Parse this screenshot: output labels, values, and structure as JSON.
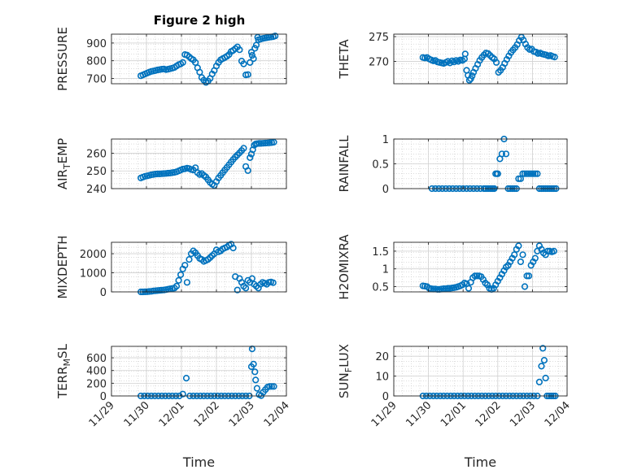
{
  "figure": {
    "title": "Figure 2 high",
    "marker_color": "#0072BD",
    "axis_color": "#262626",
    "grid_color": "#c8c8c8"
  },
  "chart_data": [
    {
      "type": "scatter",
      "ylabel": "PRESSURE",
      "ylim": [
        670,
        950
      ],
      "yticks": [
        700,
        800,
        900
      ],
      "xlabel": "",
      "title": "Figure 2 high",
      "x_range": [
        "11/29",
        "12/04"
      ],
      "x": [
        29.84,
        29.9,
        29.96,
        30.02,
        30.08,
        30.14,
        30.2,
        30.26,
        30.32,
        30.38,
        30.44,
        30.5,
        30.56,
        30.62,
        30.68,
        30.74,
        30.8,
        30.86,
        30.92,
        30.98,
        31.04,
        31.1,
        31.16,
        31.22,
        31.28,
        31.34,
        31.4,
        31.46,
        31.52,
        31.58,
        31.64,
        31.7,
        31.76,
        31.82,
        31.88,
        31.94,
        32.0,
        32.06,
        32.12,
        32.18,
        32.24,
        32.3,
        32.36,
        32.42,
        32.48,
        32.54,
        32.6,
        32.66,
        32.72,
        32.78,
        32.84,
        32.9,
        32.96,
        33.0,
        33.02,
        33.06,
        33.1,
        33.14,
        33.18,
        33.2,
        33.26,
        33.32,
        33.38,
        33.44,
        33.5,
        33.56,
        33.62,
        33.68
      ],
      "y": [
        715,
        720,
        725,
        730,
        735,
        740,
        742,
        745,
        748,
        750,
        752,
        753,
        750,
        752,
        755,
        758,
        762,
        770,
        778,
        782,
        790,
        835,
        832,
        822,
        812,
        805,
        790,
        760,
        735,
        705,
        690,
        678,
        685,
        700,
        725,
        745,
        770,
        790,
        805,
        812,
        818,
        825,
        835,
        852,
        858,
        868,
        878,
        862,
        798,
        782,
        720,
        722,
        790,
        848,
        830,
        812,
        870,
        888,
        932,
        918,
        922,
        925,
        928,
        930,
        932,
        934,
        936,
        940
      ],
      "series": [
        {
          "name": "",
          "values": []
        }
      ]
    },
    {
      "type": "scatter",
      "ylabel": "THETA",
      "ylim": [
        265.5,
        275.5
      ],
      "yticks": [
        270,
        275
      ],
      "xlabel": "",
      "title": "",
      "x_range": [
        "11/29",
        "12/04"
      ],
      "x": [
        29.84,
        29.9,
        29.96,
        30.02,
        30.08,
        30.14,
        30.2,
        30.26,
        30.32,
        30.38,
        30.44,
        30.5,
        30.56,
        30.62,
        30.68,
        30.74,
        30.8,
        30.86,
        30.92,
        30.98,
        31.04,
        31.06,
        31.1,
        31.14,
        31.18,
        31.22,
        31.26,
        31.3,
        31.36,
        31.42,
        31.48,
        31.54,
        31.6,
        31.66,
        31.72,
        31.78,
        31.84,
        31.9,
        31.96,
        32.02,
        32.08,
        32.14,
        32.2,
        32.26,
        32.32,
        32.38,
        32.44,
        32.5,
        32.56,
        32.62,
        32.68,
        32.74,
        32.8,
        32.86,
        32.92,
        32.98,
        33.04,
        33.1,
        33.16,
        33.22,
        33.28,
        33.34,
        33.4,
        33.46,
        33.52,
        33.58,
        33.64
      ],
      "y": [
        270.8,
        270.7,
        270.8,
        270.5,
        270.3,
        270.1,
        270.2,
        269.9,
        269.8,
        269.7,
        269.6,
        269.8,
        270.0,
        269.7,
        270.1,
        269.9,
        270.2,
        270.0,
        270.3,
        270.2,
        270.5,
        271.5,
        268.2,
        267.2,
        266.2,
        266.5,
        267.1,
        267.8,
        268.6,
        269.4,
        270.2,
        270.8,
        271.3,
        271.7,
        271.6,
        271.2,
        270.8,
        270.5,
        269.8,
        267.8,
        268.2,
        268.8,
        269.6,
        270.4,
        271.1,
        271.8,
        272.3,
        272.8,
        273.4,
        274.2,
        274.9,
        274.3,
        273.5,
        272.8,
        272.4,
        272.5,
        272.0,
        271.9,
        271.6,
        271.7,
        271.5,
        271.4,
        271.3,
        271.1,
        271.2,
        271.0,
        270.9
      ],
      "series": [
        {
          "name": "",
          "values": []
        }
      ]
    },
    {
      "type": "scatter",
      "ylabel": "AIR_TEMP",
      "ylim": [
        240,
        268
      ],
      "yticks": [
        240,
        250,
        260
      ],
      "xlabel": "",
      "title": "",
      "x_range": [
        "11/29",
        "12/04"
      ],
      "x": [
        29.84,
        29.9,
        29.96,
        30.02,
        30.08,
        30.14,
        30.2,
        30.26,
        30.32,
        30.38,
        30.44,
        30.5,
        30.56,
        30.62,
        30.68,
        30.74,
        30.8,
        30.86,
        30.92,
        30.98,
        31.04,
        31.1,
        31.16,
        31.22,
        31.28,
        31.34,
        31.4,
        31.46,
        31.52,
        31.58,
        31.64,
        31.7,
        31.76,
        31.82,
        31.88,
        31.94,
        32.0,
        32.06,
        32.12,
        32.18,
        32.24,
        32.3,
        32.36,
        32.42,
        32.48,
        32.54,
        32.6,
        32.66,
        32.72,
        32.78,
        32.84,
        32.9,
        32.96,
        33.0,
        33.04,
        33.08,
        33.12,
        33.16,
        33.22,
        33.28,
        33.34,
        33.4,
        33.46,
        33.52,
        33.58,
        33.64
      ],
      "y": [
        246,
        246.5,
        247,
        247.2,
        247.5,
        247.8,
        248,
        248.2,
        248.3,
        248.3,
        248.4,
        248.5,
        248.6,
        248.7,
        248.8,
        249,
        249.2,
        249.5,
        250,
        250.5,
        251,
        251.2,
        251.5,
        251.3,
        250.8,
        250.5,
        251.8,
        249,
        248,
        248.5,
        247.5,
        246.5,
        245,
        243.5,
        242.5,
        241.8,
        244,
        246,
        247.5,
        249,
        250.5,
        252,
        253.5,
        255,
        256.5,
        257.8,
        259,
        260.2,
        261.5,
        262.8,
        252.5,
        250.2,
        257.5,
        259.5,
        262,
        264.5,
        265.2,
        265.4,
        265.5,
        265.5,
        265.6,
        265.7,
        265.8,
        265.9,
        266,
        266.2
      ],
      "series": [
        {
          "name": "",
          "values": []
        }
      ]
    },
    {
      "type": "scatter",
      "ylabel": "RAINFALL",
      "ylim": [
        0,
        1
      ],
      "yticks": [
        0,
        0.5,
        1
      ],
      "xlabel": "",
      "title": "",
      "x_range": [
        "11/29",
        "12/04"
      ],
      "x": [
        30.1,
        30.2,
        30.3,
        30.4,
        30.5,
        30.6,
        30.7,
        30.8,
        30.9,
        31.0,
        31.1,
        31.2,
        31.3,
        31.4,
        31.5,
        31.6,
        31.66,
        31.72,
        31.78,
        31.82,
        31.86,
        31.9,
        31.94,
        31.98,
        32.0,
        32.06,
        32.12,
        32.18,
        32.24,
        32.3,
        32.36,
        32.42,
        32.48,
        32.54,
        32.6,
        32.66,
        32.72,
        32.78,
        32.84,
        32.9,
        32.96,
        33.02,
        33.08,
        33.14,
        33.2,
        33.26,
        33.32,
        33.38,
        33.44,
        33.5,
        33.56,
        33.62,
        33.68
      ],
      "y": [
        0,
        0,
        0,
        0,
        0,
        0,
        0,
        0,
        0,
        0,
        0,
        0,
        0,
        0,
        0,
        0,
        0,
        0,
        0,
        0,
        0,
        0,
        0.3,
        0.3,
        0.3,
        0.6,
        0.7,
        1.0,
        0.7,
        0,
        0,
        0,
        0,
        0,
        0.2,
        0.2,
        0.3,
        0.3,
        0.3,
        0.3,
        0.3,
        0.3,
        0.3,
        0.3,
        0,
        0,
        0,
        0,
        0,
        0,
        0,
        0,
        0
      ],
      "series": [
        {
          "name": "",
          "values": []
        }
      ]
    },
    {
      "type": "scatter",
      "ylabel": "MIXDEPTH",
      "ylim": [
        0,
        2600
      ],
      "yticks": [
        0,
        1000,
        2000
      ],
      "xlabel": "",
      "title": "",
      "x_range": [
        "11/29",
        "12/04"
      ],
      "x": [
        29.84,
        29.9,
        29.96,
        30.02,
        30.08,
        30.14,
        30.2,
        30.26,
        30.32,
        30.38,
        30.44,
        30.5,
        30.56,
        30.62,
        30.68,
        30.74,
        30.8,
        30.86,
        30.92,
        30.98,
        31.04,
        31.1,
        31.16,
        31.22,
        31.28,
        31.34,
        31.4,
        31.46,
        31.52,
        31.58,
        31.64,
        31.7,
        31.76,
        31.82,
        31.88,
        31.94,
        32.0,
        32.06,
        32.12,
        32.18,
        32.24,
        32.3,
        32.36,
        32.42,
        32.48,
        32.54,
        32.6,
        32.66,
        32.72,
        32.78,
        32.84,
        32.9,
        32.96,
        33.02,
        33.08,
        33.14,
        33.2,
        33.26,
        33.32,
        33.38,
        33.44,
        33.5,
        33.56,
        33.62
      ],
      "y": [
        0,
        0,
        5,
        10,
        20,
        30,
        50,
        60,
        70,
        80,
        90,
        100,
        120,
        140,
        160,
        180,
        200,
        300,
        600,
        900,
        1200,
        1400,
        500,
        1700,
        2000,
        2150,
        2050,
        1900,
        1750,
        1700,
        1600,
        1650,
        1700,
        1800,
        1900,
        2000,
        2200,
        2100,
        2150,
        2250,
        2300,
        2350,
        2450,
        2500,
        2300,
        800,
        100,
        700,
        500,
        300,
        200,
        600,
        500,
        700,
        400,
        300,
        200,
        400,
        500,
        450,
        400,
        500,
        520,
        480
      ],
      "series": [
        {
          "name": "",
          "values": []
        }
      ]
    },
    {
      "type": "scatter",
      "ylabel": "H2OMIXRA",
      "ylim": [
        0.35,
        1.75
      ],
      "yticks": [
        0.5,
        1,
        1.5
      ],
      "xlabel": "",
      "title": "",
      "x_range": [
        "11/29",
        "12/04"
      ],
      "x": [
        29.84,
        29.9,
        29.96,
        30.02,
        30.08,
        30.14,
        30.2,
        30.26,
        30.32,
        30.38,
        30.44,
        30.5,
        30.56,
        30.62,
        30.68,
        30.74,
        30.8,
        30.86,
        30.92,
        30.98,
        31.04,
        31.1,
        31.16,
        31.22,
        31.28,
        31.34,
        31.4,
        31.46,
        31.52,
        31.58,
        31.64,
        31.7,
        31.76,
        31.82,
        31.88,
        31.94,
        32.0,
        32.06,
        32.12,
        32.18,
        32.24,
        32.3,
        32.36,
        32.42,
        32.48,
        32.54,
        32.6,
        32.66,
        32.72,
        32.78,
        32.84,
        32.9,
        32.96,
        33.02,
        33.08,
        33.14,
        33.2,
        33.26,
        33.32,
        33.38,
        33.44,
        33.5,
        33.56,
        33.62
      ],
      "y": [
        0.52,
        0.51,
        0.5,
        0.45,
        0.44,
        0.43,
        0.43,
        0.42,
        0.42,
        0.43,
        0.44,
        0.44,
        0.45,
        0.45,
        0.46,
        0.47,
        0.48,
        0.5,
        0.52,
        0.55,
        0.6,
        0.58,
        0.45,
        0.62,
        0.75,
        0.8,
        0.8,
        0.8,
        0.78,
        0.7,
        0.6,
        0.55,
        0.45,
        0.42,
        0.45,
        0.55,
        0.65,
        0.75,
        0.85,
        0.95,
        1.05,
        1.1,
        1.2,
        1.3,
        1.4,
        1.55,
        1.65,
        1.2,
        1.4,
        0.5,
        0.8,
        0.8,
        1.1,
        1.2,
        1.3,
        1.5,
        1.65,
        1.55,
        1.45,
        1.4,
        1.5,
        1.5,
        1.48,
        1.5
      ],
      "series": [
        {
          "name": "",
          "values": []
        }
      ]
    },
    {
      "type": "scatter",
      "ylabel": "TERR_MSL",
      "ylim": [
        0,
        780
      ],
      "yticks": [
        0,
        200,
        400,
        600
      ],
      "xlabel": "Time",
      "title": "",
      "x_range": [
        "11/29",
        "12/04"
      ],
      "x": [
        29.84,
        29.94,
        30.04,
        30.14,
        30.24,
        30.34,
        30.44,
        30.54,
        30.64,
        30.74,
        30.84,
        30.94,
        31.04,
        31.14,
        31.24,
        31.34,
        31.44,
        31.54,
        31.64,
        31.74,
        31.84,
        31.94,
        32.04,
        32.14,
        32.24,
        32.34,
        32.44,
        32.54,
        32.64,
        32.74,
        32.84,
        32.94,
        33.0,
        33.02,
        33.06,
        33.1,
        33.12,
        33.16,
        33.22,
        33.28,
        33.34,
        33.4,
        33.46,
        33.52,
        33.58,
        33.64
      ],
      "y": [
        0,
        0,
        0,
        0,
        0,
        0,
        0,
        0,
        0,
        0,
        0,
        0,
        30,
        280,
        0,
        0,
        0,
        0,
        0,
        0,
        0,
        0,
        0,
        0,
        0,
        0,
        0,
        0,
        0,
        0,
        0,
        0,
        460,
        740,
        500,
        380,
        250,
        120,
        20,
        5,
        60,
        100,
        140,
        150,
        150,
        150
      ],
      "series": [
        {
          "name": "",
          "values": []
        }
      ]
    },
    {
      "type": "scatter",
      "ylabel": "SUN_FLUX",
      "ylim": [
        0,
        25
      ],
      "yticks": [
        0,
        10,
        20
      ],
      "xlabel": "Time",
      "title": "",
      "x_range": [
        "11/29",
        "12/04"
      ],
      "x": [
        29.84,
        29.94,
        30.04,
        30.14,
        30.24,
        30.34,
        30.44,
        30.54,
        30.64,
        30.74,
        30.84,
        30.94,
        31.04,
        31.14,
        31.24,
        31.34,
        31.44,
        31.54,
        31.64,
        31.74,
        31.84,
        31.94,
        32.04,
        32.14,
        32.24,
        32.34,
        32.44,
        32.54,
        32.64,
        32.74,
        32.84,
        32.94,
        33.04,
        33.14,
        33.2,
        33.26,
        33.3,
        33.34,
        33.38,
        33.42,
        33.48,
        33.54,
        33.6,
        33.66
      ],
      "y": [
        0,
        0,
        0,
        0,
        0,
        0,
        0,
        0,
        0,
        0,
        0,
        0,
        0,
        0,
        0,
        0,
        0,
        0,
        0,
        0,
        0,
        0,
        0,
        0,
        0,
        0,
        0,
        0,
        0,
        0,
        0,
        0,
        0,
        0,
        7,
        15,
        24,
        18,
        9,
        0,
        0,
        0,
        0,
        0
      ],
      "series": [
        {
          "name": "",
          "values": []
        }
      ]
    }
  ],
  "xticks": [
    "11/29",
    "11/30",
    "12/01",
    "12/02",
    "12/03",
    "12/04"
  ]
}
